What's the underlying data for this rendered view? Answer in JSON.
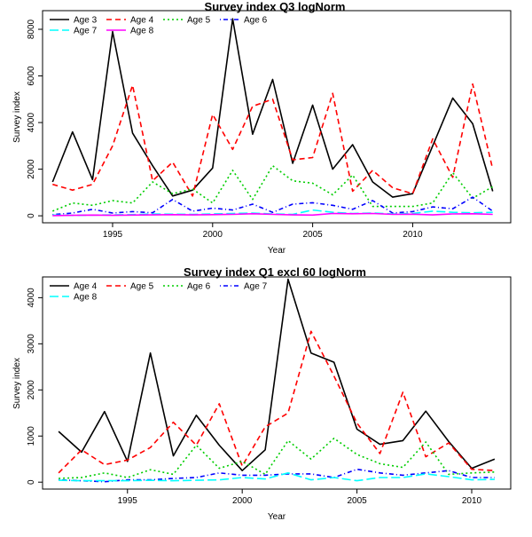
{
  "chart_data": [
    {
      "type": "line",
      "title": "Survey index Q3 logNorm",
      "xlabel": "Year",
      "ylabel": "Survey index",
      "xlim": [
        1991.5,
        2014.9
      ],
      "ylim": [
        -300,
        8800
      ],
      "xticks": [
        1995,
        2000,
        2005,
        2010
      ],
      "yticks": [
        0,
        2000,
        4000,
        6000,
        8000
      ],
      "legend": "top-left",
      "grid": false,
      "x": [
        1992,
        1993,
        1994,
        1995,
        1996,
        1997,
        1998,
        1999,
        2000,
        2001,
        2002,
        2003,
        2004,
        2005,
        2006,
        2007,
        2008,
        2009,
        2010,
        2011,
        2012,
        2013,
        2014
      ],
      "series": [
        {
          "name": "Age 3",
          "color": "#000000",
          "dash": "solid",
          "values": [
            1450,
            3600,
            1550,
            7900,
            3550,
            2150,
            850,
            1100,
            2050,
            8450,
            3500,
            5850,
            2250,
            4750,
            2000,
            3050,
            1450,
            800,
            950,
            3000,
            5050,
            3950,
            1050
          ]
        },
        {
          "name": "Age 4",
          "color": "#ff0000",
          "dash": "dashed",
          "values": [
            1350,
            1100,
            1350,
            3000,
            5600,
            1500,
            2300,
            850,
            4350,
            2850,
            4700,
            5000,
            2400,
            2500,
            5250,
            1050,
            1950,
            1200,
            950,
            3300,
            1650,
            5650,
            2000
          ]
        },
        {
          "name": "Age 5",
          "color": "#00cd00",
          "dash": "dotted",
          "values": [
            200,
            550,
            450,
            650,
            550,
            1450,
            950,
            1150,
            550,
            1950,
            700,
            2150,
            1500,
            1400,
            900,
            1750,
            400,
            400,
            400,
            550,
            1850,
            750,
            1250
          ]
        },
        {
          "name": "Age 6",
          "color": "#0000ff",
          "dash": "dotdash",
          "values": [
            50,
            120,
            280,
            120,
            180,
            130,
            700,
            200,
            330,
            250,
            500,
            150,
            500,
            560,
            450,
            280,
            650,
            120,
            180,
            380,
            300,
            800,
            200
          ]
        },
        {
          "name": "Age 7",
          "color": "#00ffff",
          "dash": "longdash",
          "values": [
            30,
            20,
            30,
            40,
            50,
            80,
            70,
            60,
            80,
            100,
            120,
            80,
            60,
            250,
            150,
            100,
            120,
            80,
            100,
            200,
            150,
            130,
            150
          ]
        },
        {
          "name": "Age 8",
          "color": "#ff00ff",
          "dash": "solid",
          "values": [
            10,
            20,
            30,
            20,
            30,
            40,
            50,
            40,
            50,
            60,
            90,
            60,
            40,
            30,
            100,
            90,
            100,
            60,
            70,
            40,
            80,
            90,
            60
          ]
        }
      ]
    },
    {
      "type": "line",
      "title": "Survey index Q1 excl 60 logNorm",
      "xlabel": "Year",
      "ylabel": "Survey index",
      "xlim": [
        1991.3,
        2011.7
      ],
      "ylim": [
        -150,
        4450
      ],
      "xticks": [
        1995,
        2000,
        2005,
        2010
      ],
      "yticks": [
        0,
        1000,
        2000,
        3000,
        4000
      ],
      "legend": "top-left",
      "grid": false,
      "x": [
        1992,
        1993,
        1994,
        1995,
        1996,
        1997,
        1998,
        1999,
        2000,
        2001,
        2002,
        2003,
        2004,
        2005,
        2006,
        2007,
        2008,
        2009,
        2010,
        2011
      ],
      "series": [
        {
          "name": "Age 4",
          "color": "#000000",
          "dash": "solid",
          "values": [
            1100,
            650,
            1530,
            450,
            2800,
            570,
            1450,
            800,
            250,
            700,
            4400,
            2800,
            2600,
            1150,
            820,
            900,
            1540,
            880,
            300,
            500
          ]
        },
        {
          "name": "Age 5",
          "color": "#ff0000",
          "dash": "dashed",
          "values": [
            200,
            700,
            380,
            480,
            750,
            1300,
            800,
            1700,
            350,
            1200,
            1500,
            3270,
            2300,
            1280,
            620,
            1950,
            550,
            850,
            280,
            250
          ]
        },
        {
          "name": "Age 6",
          "color": "#00cd00",
          "dash": "dotted",
          "values": [
            80,
            100,
            200,
            100,
            270,
            170,
            800,
            300,
            450,
            170,
            900,
            500,
            950,
            600,
            400,
            320,
            870,
            170,
            200,
            220
          ]
        },
        {
          "name": "Age 7",
          "color": "#0000ff",
          "dash": "dotdash",
          "values": [
            50,
            30,
            10,
            50,
            50,
            80,
            100,
            200,
            150,
            150,
            180,
            180,
            100,
            280,
            200,
            150,
            200,
            250,
            100,
            100
          ]
        },
        {
          "name": "Age 8",
          "color": "#00ffff",
          "dash": "longdash",
          "values": [
            40,
            30,
            30,
            30,
            40,
            30,
            40,
            50,
            100,
            70,
            200,
            50,
            100,
            30,
            100,
            100,
            180,
            120,
            50,
            60
          ]
        }
      ]
    }
  ]
}
